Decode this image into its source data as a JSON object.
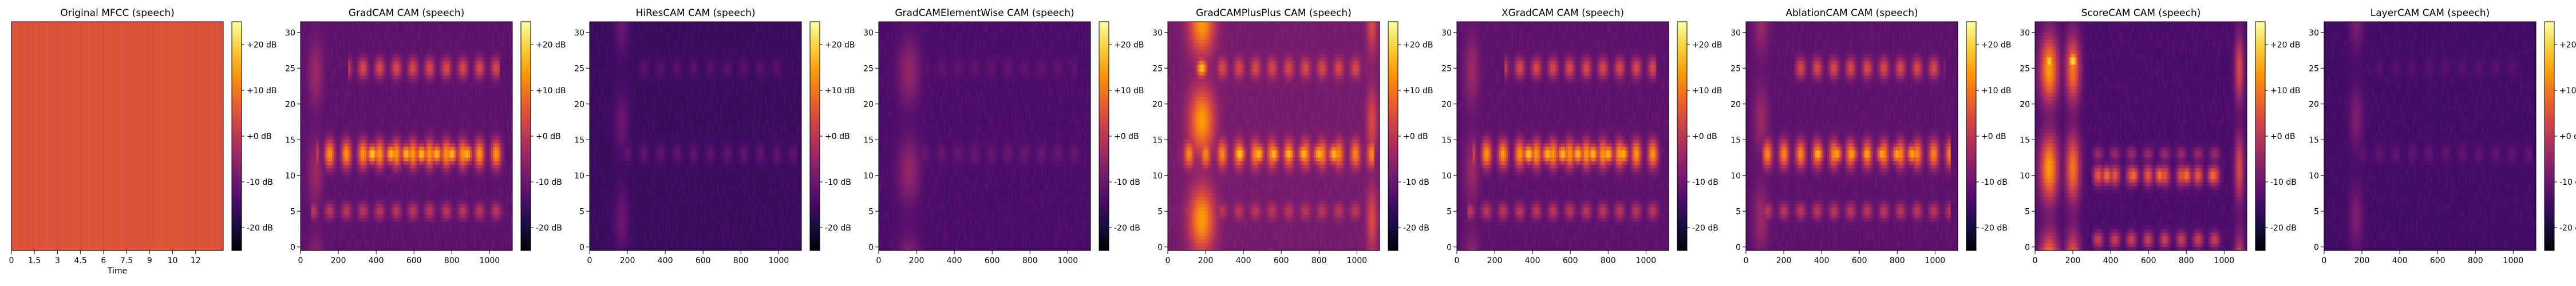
{
  "figure": {
    "colorbar_ticks": [
      "+20 dB",
      "+10 dB",
      "+0 dB",
      "-10 dB",
      "-20 dB"
    ],
    "colorbar_values": [
      20,
      10,
      0,
      -10,
      -20
    ],
    "colormap": [
      "#000004",
      "#1b0c41",
      "#4a0c6b",
      "#781c6d",
      "#a52c60",
      "#cf4446",
      "#ed6925",
      "#fb9b06",
      "#f7d13d",
      "#fcffa4"
    ]
  },
  "chart_data": [
    {
      "type": "heatmap",
      "title": "Original MFCC (speech)",
      "xlabel": "Time",
      "ylabel": "",
      "x_ticks": [
        "0",
        "1.5",
        "3",
        "4.5",
        "6",
        "7.5",
        "9",
        "10",
        "12"
      ],
      "x_tick_values": [
        0,
        1.5,
        3,
        4.5,
        6,
        7.5,
        9,
        10.5,
        12
      ],
      "xlim": [
        0,
        13.8
      ],
      "y_ticks": [],
      "colorbar": {
        "ticks": [
          "+20 dB",
          "+10 dB",
          "+0 dB",
          "-10 dB",
          "-20 dB"
        ],
        "range_db": [
          -25,
          25
        ]
      },
      "pattern": {
        "kind": "uniform",
        "base_db": 5
      }
    },
    {
      "type": "heatmap",
      "title": "GradCAM CAM (speech)",
      "xlabel": "",
      "ylabel": "",
      "x_ticks": [
        "0",
        "200",
        "400",
        "600",
        "800",
        "1000"
      ],
      "x_tick_values": [
        0,
        200,
        400,
        600,
        800,
        1000
      ],
      "xlim": [
        0,
        1120
      ],
      "y_ticks": [
        "0",
        "5",
        "10",
        "15",
        "20",
        "25",
        "30"
      ],
      "y_tick_values": [
        0,
        5,
        10,
        15,
        20,
        25,
        30
      ],
      "ylim": [
        -0.5,
        31.5
      ],
      "colorbar": {
        "ticks": [
          "+20 dB",
          "+10 dB",
          "+0 dB",
          "-10 dB",
          "-20 dB"
        ],
        "range_db": [
          -25,
          25
        ]
      },
      "pattern": {
        "base_db": -12,
        "bands": [
          {
            "y": 13,
            "width": 2.0,
            "x_start": 80,
            "x_end": 1080,
            "db": 14
          },
          {
            "y": 25,
            "width": 1.5,
            "x_start": 250,
            "x_end": 1050,
            "db": 4
          },
          {
            "y": 5,
            "width": 1.2,
            "x_start": 60,
            "x_end": 1080,
            "db": 0
          }
        ],
        "columns": [
          {
            "x": 80,
            "width": 40,
            "db": -4
          }
        ],
        "hotspots": [
          {
            "x": 380,
            "y": 13,
            "db": 20
          },
          {
            "x": 480,
            "y": 13,
            "db": 18
          },
          {
            "x": 560,
            "y": 13,
            "db": 18
          },
          {
            "x": 640,
            "y": 13,
            "db": 18
          },
          {
            "x": 720,
            "y": 13,
            "db": 18
          },
          {
            "x": 800,
            "y": 13,
            "db": 18
          },
          {
            "x": 880,
            "y": 13,
            "db": 18
          }
        ]
      }
    },
    {
      "type": "heatmap",
      "title": "HiResCAM CAM (speech)",
      "xlabel": "",
      "ylabel": "",
      "x_ticks": [
        "0",
        "200",
        "400",
        "600",
        "800",
        "1000"
      ],
      "x_tick_values": [
        0,
        200,
        400,
        600,
        800,
        1000
      ],
      "xlim": [
        0,
        1120
      ],
      "y_ticks": [
        "0",
        "5",
        "10",
        "15",
        "20",
        "25",
        "30"
      ],
      "y_tick_values": [
        0,
        5,
        10,
        15,
        20,
        25,
        30
      ],
      "ylim": [
        -0.5,
        31.5
      ],
      "colorbar": {
        "ticks": [
          "+20 dB",
          "+10 dB",
          "+0 dB",
          "-10 dB",
          "-20 dB"
        ],
        "range_db": [
          -25,
          25
        ]
      },
      "pattern": {
        "base_db": -16,
        "bands": [
          {
            "y": 13,
            "width": 1.5,
            "x_start": 150,
            "x_end": 1100,
            "db": -11
          },
          {
            "y": 25,
            "width": 1.5,
            "x_start": 250,
            "x_end": 1050,
            "db": -12
          }
        ],
        "columns": [
          {
            "x": 170,
            "width": 40,
            "db": -10
          }
        ],
        "hotspots": []
      }
    },
    {
      "type": "heatmap",
      "title": "GradCAMElementWise CAM (speech)",
      "xlabel": "",
      "ylabel": "",
      "x_ticks": [
        "0",
        "200",
        "400",
        "600",
        "800",
        "1000"
      ],
      "x_tick_values": [
        0,
        200,
        400,
        600,
        800,
        1000
      ],
      "xlim": [
        0,
        1120
      ],
      "y_ticks": [
        "0",
        "5",
        "10",
        "15",
        "20",
        "25",
        "30"
      ],
      "y_tick_values": [
        0,
        5,
        10,
        15,
        20,
        25,
        30
      ],
      "ylim": [
        -0.5,
        31.5
      ],
      "colorbar": {
        "ticks": [
          "+20 dB",
          "+10 dB",
          "+0 dB",
          "-10 dB",
          "-20 dB"
        ],
        "range_db": [
          -25,
          25
        ]
      },
      "pattern": {
        "base_db": -14,
        "bands": [
          {
            "y": 13,
            "width": 1.5,
            "x_start": 100,
            "x_end": 1100,
            "db": -10
          },
          {
            "y": 25,
            "width": 1.5,
            "x_start": 250,
            "x_end": 1050,
            "db": -11
          }
        ],
        "columns": [
          {
            "x": 160,
            "width": 60,
            "db": -5
          }
        ],
        "hotspots": []
      }
    },
    {
      "type": "heatmap",
      "title": "GradCAMPlusPlus CAM (speech)",
      "xlabel": "",
      "ylabel": "",
      "x_ticks": [
        "0",
        "200",
        "400",
        "600",
        "800",
        "1000"
      ],
      "x_tick_values": [
        0,
        200,
        400,
        600,
        800,
        1000
      ],
      "xlim": [
        0,
        1120
      ],
      "y_ticks": [
        "0",
        "5",
        "10",
        "15",
        "20",
        "25",
        "30"
      ],
      "y_tick_values": [
        0,
        5,
        10,
        15,
        20,
        25,
        30
      ],
      "ylim": [
        -0.5,
        31.5
      ],
      "colorbar": {
        "ticks": [
          "+20 dB",
          "+10 dB",
          "+0 dB",
          "-10 dB",
          "-20 dB"
        ],
        "range_db": [
          -25,
          25
        ]
      },
      "pattern": {
        "base_db": -9,
        "bands": [
          {
            "y": 13,
            "width": 2.0,
            "x_start": 60,
            "x_end": 1090,
            "db": 12
          },
          {
            "y": 25,
            "width": 1.5,
            "x_start": 250,
            "x_end": 1050,
            "db": 4
          },
          {
            "y": 5,
            "width": 1.2,
            "x_start": 60,
            "x_end": 1080,
            "db": 0
          }
        ],
        "columns": [
          {
            "x": 180,
            "width": 70,
            "db": 14
          },
          {
            "x": 1080,
            "width": 30,
            "db": 4
          }
        ],
        "hotspots": [
          {
            "x": 380,
            "y": 13,
            "db": 20
          },
          {
            "x": 480,
            "y": 13,
            "db": 18
          },
          {
            "x": 560,
            "y": 13,
            "db": 18
          },
          {
            "x": 640,
            "y": 13,
            "db": 18
          },
          {
            "x": 720,
            "y": 13,
            "db": 18
          },
          {
            "x": 800,
            "y": 13,
            "db": 18
          },
          {
            "x": 880,
            "y": 13,
            "db": 18
          },
          {
            "x": 180,
            "y": 25,
            "db": 18
          }
        ]
      }
    },
    {
      "type": "heatmap",
      "title": "XGradCAM CAM (speech)",
      "xlabel": "",
      "ylabel": "",
      "x_ticks": [
        "0",
        "200",
        "400",
        "600",
        "800",
        "1000"
      ],
      "x_tick_values": [
        0,
        200,
        400,
        600,
        800,
        1000
      ],
      "xlim": [
        0,
        1120
      ],
      "y_ticks": [
        "0",
        "5",
        "10",
        "15",
        "20",
        "25",
        "30"
      ],
      "y_tick_values": [
        0,
        5,
        10,
        15,
        20,
        25,
        30
      ],
      "ylim": [
        -0.5,
        31.5
      ],
      "colorbar": {
        "ticks": [
          "+20 dB",
          "+10 dB",
          "+0 dB",
          "-10 dB",
          "-20 dB"
        ],
        "range_db": [
          -25,
          25
        ]
      },
      "pattern": {
        "base_db": -12,
        "bands": [
          {
            "y": 13,
            "width": 2.0,
            "x_start": 80,
            "x_end": 1080,
            "db": 14
          },
          {
            "y": 25,
            "width": 1.5,
            "x_start": 250,
            "x_end": 1050,
            "db": 4
          },
          {
            "y": 5,
            "width": 1.2,
            "x_start": 60,
            "x_end": 1080,
            "db": 0
          }
        ],
        "columns": [
          {
            "x": 80,
            "width": 40,
            "db": -4
          }
        ],
        "hotspots": [
          {
            "x": 380,
            "y": 13,
            "db": 20
          },
          {
            "x": 480,
            "y": 13,
            "db": 18
          },
          {
            "x": 560,
            "y": 13,
            "db": 18
          },
          {
            "x": 640,
            "y": 13,
            "db": 18
          },
          {
            "x": 720,
            "y": 13,
            "db": 18
          },
          {
            "x": 800,
            "y": 13,
            "db": 18
          },
          {
            "x": 880,
            "y": 13,
            "db": 18
          }
        ]
      }
    },
    {
      "type": "heatmap",
      "title": "AblationCAM CAM (speech)",
      "xlabel": "",
      "ylabel": "",
      "x_ticks": [
        "0",
        "200",
        "400",
        "600",
        "800",
        "1000"
      ],
      "x_tick_values": [
        0,
        200,
        400,
        600,
        800,
        1000
      ],
      "xlim": [
        0,
        1120
      ],
      "y_ticks": [
        "0",
        "5",
        "10",
        "15",
        "20",
        "25",
        "30"
      ],
      "y_tick_values": [
        0,
        5,
        10,
        15,
        20,
        25,
        30
      ],
      "ylim": [
        -0.5,
        31.5
      ],
      "colorbar": {
        "ticks": [
          "+20 dB",
          "+10 dB",
          "+0 dB",
          "-10 dB",
          "-20 dB"
        ],
        "range_db": [
          -25,
          25
        ]
      },
      "pattern": {
        "base_db": -12,
        "bands": [
          {
            "y": 13,
            "width": 2.0,
            "x_start": 80,
            "x_end": 1080,
            "db": 12
          },
          {
            "y": 25,
            "width": 1.5,
            "x_start": 250,
            "x_end": 1050,
            "db": 4
          },
          {
            "y": 5,
            "width": 1.2,
            "x_start": 60,
            "x_end": 1080,
            "db": 0
          }
        ],
        "columns": [
          {
            "x": 80,
            "width": 40,
            "db": -4
          }
        ],
        "hotspots": [
          {
            "x": 380,
            "y": 13,
            "db": 18
          },
          {
            "x": 480,
            "y": 13,
            "db": 16
          },
          {
            "x": 560,
            "y": 13,
            "db": 16
          },
          {
            "x": 640,
            "y": 13,
            "db": 16
          },
          {
            "x": 720,
            "y": 13,
            "db": 16
          },
          {
            "x": 800,
            "y": 13,
            "db": 16
          },
          {
            "x": 880,
            "y": 13,
            "db": 16
          }
        ]
      }
    },
    {
      "type": "heatmap",
      "title": "ScoreCAM CAM (speech)",
      "xlabel": "",
      "ylabel": "",
      "x_ticks": [
        "0",
        "200",
        "400",
        "600",
        "800",
        "1000"
      ],
      "x_tick_values": [
        0,
        200,
        400,
        600,
        800,
        1000
      ],
      "xlim": [
        0,
        1120
      ],
      "y_ticks": [
        "0",
        "5",
        "10",
        "15",
        "20",
        "25",
        "30"
      ],
      "y_tick_values": [
        0,
        5,
        10,
        15,
        20,
        25,
        30
      ],
      "ylim": [
        -0.5,
        31.5
      ],
      "colorbar": {
        "ticks": [
          "+20 dB",
          "+10 dB",
          "+0 dB",
          "-10 dB",
          "-20 dB"
        ],
        "range_db": [
          -25,
          25
        ]
      },
      "pattern": {
        "base_db": -14,
        "bands": [
          {
            "y": 10,
            "width": 1.5,
            "x_start": 300,
            "x_end": 1000,
            "db": 6
          },
          {
            "y": 1,
            "width": 1.2,
            "x_start": 300,
            "x_end": 1000,
            "db": 2
          },
          {
            "y": 13,
            "width": 1.0,
            "x_start": 300,
            "x_end": 1000,
            "db": -4
          }
        ],
        "columns": [
          {
            "x": 75,
            "width": 50,
            "db": 14
          },
          {
            "x": 200,
            "width": 40,
            "db": 10
          },
          {
            "x": 1080,
            "width": 25,
            "db": 4
          }
        ],
        "hotspots": [
          {
            "x": 200,
            "y": 26,
            "db": 22
          },
          {
            "x": 75,
            "y": 26,
            "db": 20
          },
          {
            "x": 380,
            "y": 10,
            "db": 10
          },
          {
            "x": 520,
            "y": 10,
            "db": 10
          },
          {
            "x": 660,
            "y": 10,
            "db": 10
          },
          {
            "x": 800,
            "y": 10,
            "db": 10
          },
          {
            "x": 940,
            "y": 10,
            "db": 10
          }
        ]
      }
    },
    {
      "type": "heatmap",
      "title": "LayerCAM CAM (speech)",
      "xlabel": "",
      "ylabel": "",
      "x_ticks": [
        "0",
        "200",
        "400",
        "600",
        "800",
        "1000"
      ],
      "x_tick_values": [
        0,
        200,
        400,
        600,
        800,
        1000
      ],
      "xlim": [
        0,
        1120
      ],
      "y_ticks": [
        "0",
        "5",
        "10",
        "15",
        "20",
        "25",
        "30"
      ],
      "y_tick_values": [
        0,
        5,
        10,
        15,
        20,
        25,
        30
      ],
      "ylim": [
        -0.5,
        31.5
      ],
      "colorbar": {
        "ticks": [
          "+20 dB",
          "+10 dB",
          "+0 dB",
          "-10 dB",
          "-20 dB"
        ],
        "range_db": [
          -25,
          25
        ]
      },
      "pattern": {
        "base_db": -15,
        "bands": [
          {
            "y": 13,
            "width": 1.5,
            "x_start": 150,
            "x_end": 1100,
            "db": -11
          },
          {
            "y": 25,
            "width": 1.5,
            "x_start": 250,
            "x_end": 1050,
            "db": -12
          }
        ],
        "columns": [
          {
            "x": 170,
            "width": 40,
            "db": -8
          }
        ],
        "hotspots": []
      }
    }
  ]
}
